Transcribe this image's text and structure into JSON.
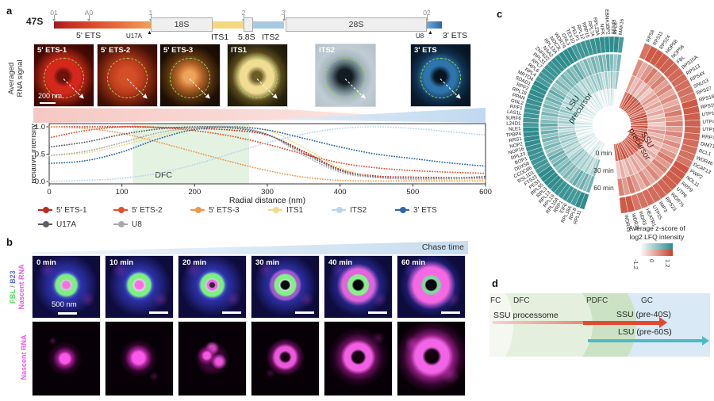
{
  "panel_letters": {
    "a": "a",
    "b": "b",
    "c": "c",
    "d": "d"
  },
  "panel_a": {
    "transcript_label": "47S",
    "markers": [
      "01",
      "A0",
      "1",
      "2",
      "3'",
      "02"
    ],
    "regions": {
      "ets5": "5' ETS",
      "r18s": "18S",
      "its1": "ITS1",
      "r58s": "5.8S",
      "its2": "ITS2",
      "r28s": "28S",
      "ets3": "3' ETS"
    },
    "probes": {
      "u17a": "U17A",
      "u8": "U8"
    },
    "row_label": "Averaged\nRNA signal",
    "image_scale_bar": "200 nm",
    "image_panels": [
      {
        "label": "5' ETS-1"
      },
      {
        "label": "5' ETS-2"
      },
      {
        "label": "5' ETS-3"
      },
      {
        "label": "ITS1"
      },
      {
        "label": "ITS2"
      },
      {
        "label": "3' ETS"
      }
    ]
  },
  "chart_data": [
    {
      "type": "line",
      "title": "",
      "xlabel": "Radial distance (nm)",
      "ylabel": "Relative intensity",
      "xlim": [
        0,
        600
      ],
      "ylim": [
        0.0,
        1.0
      ],
      "xticks": [
        0,
        100,
        200,
        300,
        400,
        500,
        600
      ],
      "yticks": [
        "1.0",
        "0.5",
        "0.0"
      ],
      "grid": false,
      "region": {
        "label": "DFC",
        "from": 115,
        "to": 275,
        "color": "#ddefdb"
      },
      "x": [
        0,
        50,
        100,
        150,
        200,
        250,
        300,
        350,
        400,
        450,
        500,
        550,
        600
      ],
      "series": [
        {
          "name": "5' ETS-1",
          "color": "#c0281e",
          "values": [
            1.0,
            1.0,
            1.0,
            0.99,
            0.97,
            0.94,
            0.85,
            0.55,
            0.22,
            0.1,
            0.08,
            0.07,
            0.06
          ]
        },
        {
          "name": "5' ETS-2",
          "color": "#e2502d",
          "values": [
            0.8,
            0.93,
            1.0,
            0.99,
            0.93,
            0.83,
            0.68,
            0.5,
            0.34,
            0.25,
            0.2,
            0.17,
            0.15
          ]
        },
        {
          "name": "5' ETS-3",
          "color": "#ef9850",
          "values": [
            1.0,
            0.97,
            0.88,
            0.72,
            0.54,
            0.36,
            0.2,
            0.08,
            0.02,
            0.01,
            0.01,
            0.01,
            0.01
          ]
        },
        {
          "name": "ITS1",
          "color": "#f2d988",
          "values": [
            0.48,
            0.52,
            0.66,
            0.84,
            0.96,
            1.0,
            0.94,
            0.62,
            0.25,
            0.08,
            0.04,
            0.03,
            0.03
          ]
        },
        {
          "name": "ITS2",
          "color": "#b9d5e9",
          "values": [
            0.0,
            0.02,
            0.06,
            0.15,
            0.31,
            0.51,
            0.71,
            0.87,
            0.97,
            1.0,
            0.97,
            0.91,
            0.85
          ]
        },
        {
          "name": "3' ETS",
          "color": "#2c69a6",
          "values": [
            0.33,
            0.38,
            0.54,
            0.78,
            0.95,
            1.0,
            0.94,
            0.79,
            0.63,
            0.5,
            0.42,
            0.34,
            0.28
          ]
        },
        {
          "name": "U17A",
          "color": "#5a5e62",
          "values": [
            0.63,
            0.72,
            0.86,
            0.96,
            1.0,
            0.98,
            0.86,
            0.52,
            0.2,
            0.08,
            0.05,
            0.06,
            0.09
          ]
        },
        {
          "name": "U8",
          "color": "#a8aaac",
          "values": [
            0.47,
            0.55,
            0.71,
            0.89,
            0.98,
            1.0,
            0.86,
            0.48,
            0.17,
            0.07,
            0.05,
            0.05,
            0.06
          ]
        }
      ]
    },
    {
      "type": "heatmap",
      "subtype": "circular-sunburst",
      "rings": [
        "0 min",
        "30 min",
        "60 min"
      ],
      "colorbar": {
        "title": [
          "Average z-score of",
          "log2 LFQ intensity"
        ],
        "ticks": [
          "-1.2",
          "0",
          "1.2"
        ]
      },
      "groups": [
        {
          "name": "LSU precursor",
          "color": "#2f8c8c",
          "ring_base": [
            0.16,
            0.42,
            0.62
          ],
          "band_opacity": 0.97,
          "genes": [
            "MAK16",
            "RPL5",
            "RPL21",
            "EBNA1BP2",
            "NIFK",
            "RPL23A",
            "RPL7A",
            "RRP15",
            "RPL12",
            "PELP1",
            "TEX10",
            "GNL3",
            "WDR74",
            "NOC3L",
            "RPL13A",
            "NSA2",
            "ZNF622",
            "RPL31",
            "RPL7",
            "RPL6",
            "RPL4",
            "MRTO4",
            "SDAD1",
            "RPF2",
            "RPL18",
            "PPAN",
            "GNL2",
            "RPF1",
            "LAS1L",
            "SURF6",
            "RSL24D1",
            "NLE1",
            "GTPBP4",
            "RRS1",
            "NOP2",
            "NOP16",
            "RPL23",
            "BOP1",
            "DDX56",
            "CCDC86",
            "RSL1D1",
            "FTSJ3",
            "PES1",
            "RPL35",
            "RPL3",
            "RPL13",
            "RPL19",
            "RPL10A",
            "RRP1",
            "EIF6",
            "RPL18A",
            "RPL8",
            "RPL11"
          ]
        },
        {
          "name": "SSU precursor",
          "color": "#c6432e",
          "ring_base": [
            0.85,
            0.42,
            0.58
          ],
          "band_opacity": 0.82,
          "genes": [
            "RPS8",
            "RPS11",
            "RPS24",
            "NOP58",
            "NOP56",
            "FBL",
            "RPS15A",
            "RPS13",
            "RPS4X",
            "SNU13",
            "RPS27",
            "RPS18",
            "RPS16",
            "UTP18",
            "UTP4",
            "UTP11",
            "RRP7A",
            "DIMT1",
            "RCL1",
            "WDR46",
            "DCAF13",
            "PWP2",
            "NOL11",
            "RRP9",
            "UTP6",
            "WDR75",
            "RPS23",
            "IMP3",
            "UTP15",
            "HEATR1",
            "WDR3",
            "WDR36",
            "WDR43"
          ]
        }
      ]
    }
  ],
  "panel_b": {
    "chase_label": "Chase time",
    "times": [
      "0 min",
      "10 min",
      "20 min",
      "30 min",
      "40 min",
      "60 min"
    ],
    "scale_bar": "500 nm",
    "row1_channels": [
      {
        "name": "FBL",
        "color": "#54e060"
      },
      {
        "name": "B23",
        "color": "#5a6cf0"
      },
      {
        "name": "Nascent RNA",
        "color": "#ee55ee"
      }
    ],
    "row2_label": "Nascent RNA"
  },
  "panel_d": {
    "zones": [
      "FC",
      "DFC",
      "PDFC",
      "GC"
    ],
    "arrow1_label": "SSU processome",
    "arrow1_end_label": "SSU (pre-40S)",
    "arrow2_label": "LSU (pre-60S)"
  }
}
